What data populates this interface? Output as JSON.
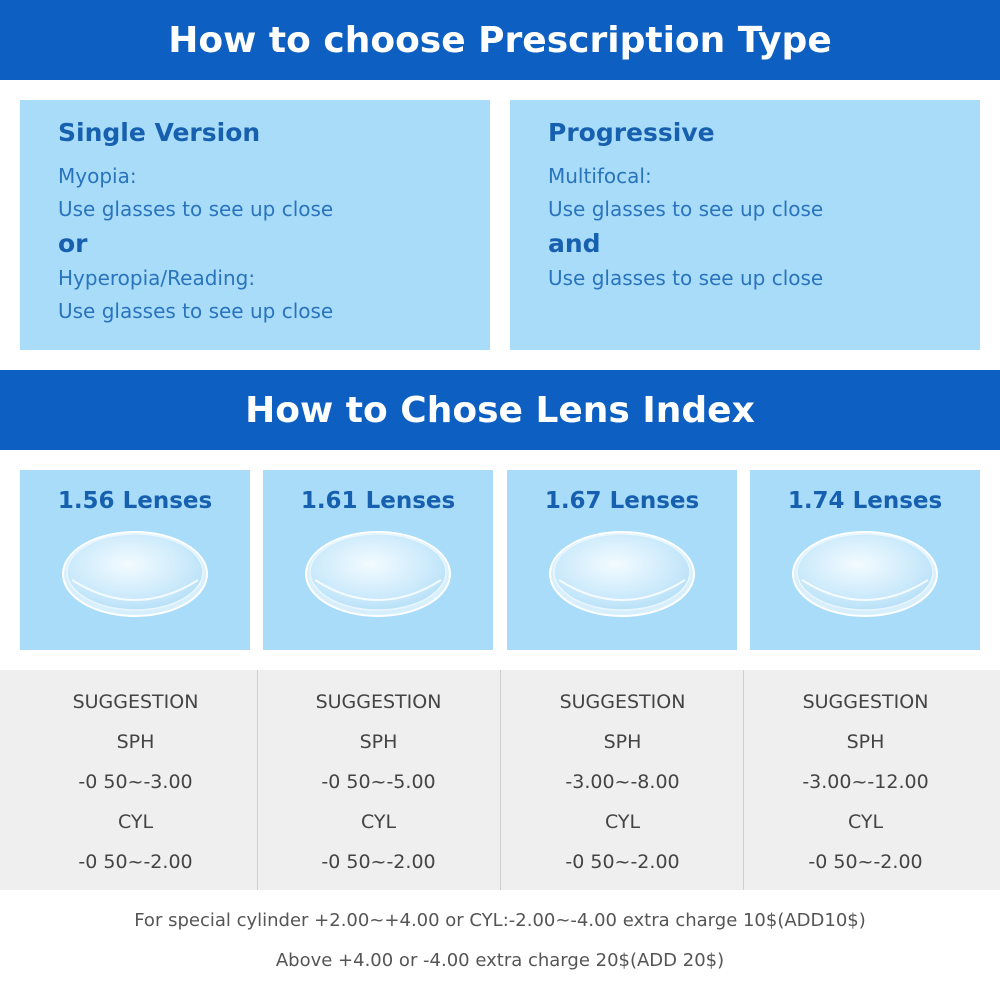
{
  "header": {
    "prescription_title": "How to choose Prescription Type",
    "index_title": "How to Chose Lens Index"
  },
  "single": {
    "title": "Single Version",
    "line1": "Myopia:",
    "line2": "Use glasses to see up close",
    "conj": "or",
    "line3": "Hyperopia/Reading:",
    "line4": "Use glasses to see up close"
  },
  "progressive": {
    "title": "Progressive",
    "line1": "Multifocal:",
    "line2": "Use glasses to see up close",
    "conj": "and",
    "line3": "Use glasses to see up close"
  },
  "lenses": [
    {
      "label": "1.56 Lenses"
    },
    {
      "label": "1.61 Lenses"
    },
    {
      "label": "1.67 Lenses"
    },
    {
      "label": "1.74 Lenses"
    }
  ],
  "suggestions": [
    {
      "heading": "SUGGESTION",
      "sph_label": "SPH",
      "sph": "-0 50~-3.00",
      "cyl_label": "CYL",
      "cyl": "-0 50~-2.00"
    },
    {
      "heading": "SUGGESTION",
      "sph_label": "SPH",
      "sph": "-0 50~-5.00",
      "cyl_label": "CYL",
      "cyl": "-0 50~-2.00"
    },
    {
      "heading": "SUGGESTION",
      "sph_label": "SPH",
      "sph": "-3.00~-8.00",
      "cyl_label": "CYL",
      "cyl": "-0 50~-2.00"
    },
    {
      "heading": "SUGGESTION",
      "sph_label": "SPH",
      "sph": "-3.00~-12.00",
      "cyl_label": "CYL",
      "cyl": "-0 50~-2.00"
    }
  ],
  "notes": {
    "line1": "For special cylinder +2.00~+4.00 or CYL:-2.00~-4.00 extra charge 10$(ADD10$)",
    "line2": "Above +4.00 or -4.00 extra charge 20$(ADD 20$)"
  },
  "colors": {
    "banner": "#0d5fc1",
    "panel": "#a8dcf9",
    "accent_text": "#1760b0",
    "suggestion_bg": "#efefef"
  }
}
